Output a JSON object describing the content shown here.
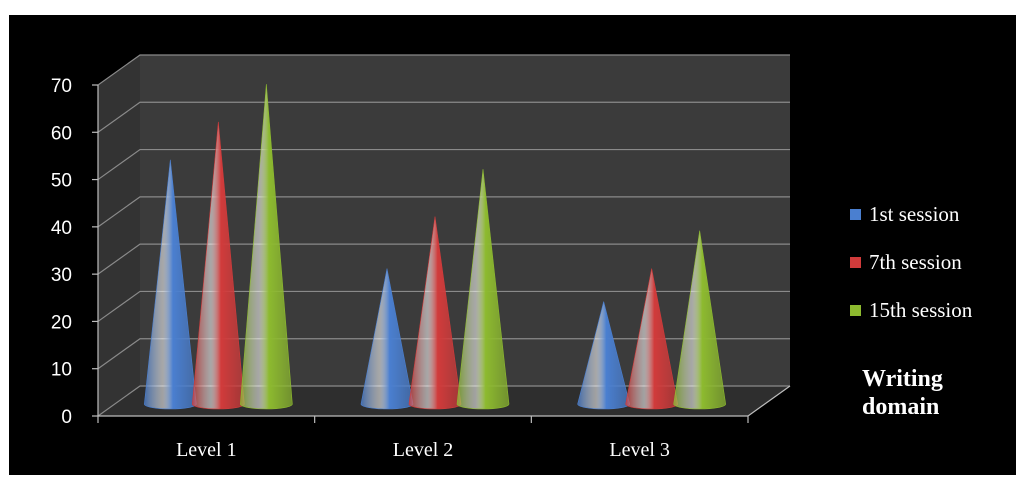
{
  "chart_data": {
    "type": "bar",
    "shape": "cone",
    "categories": [
      "Level 1",
      "Level 2",
      "Level 3"
    ],
    "series": [
      {
        "name": "1st session",
        "values": [
          47,
          24,
          17
        ],
        "color": "#4a7fd0"
      },
      {
        "name": "7th session",
        "values": [
          55,
          35,
          24
        ],
        "color": "#d13b3b"
      },
      {
        "name": "15th session",
        "values": [
          63,
          45,
          32
        ],
        "color": "#8dba2f"
      }
    ],
    "ylim": [
      0,
      70
    ],
    "yticks": [
      "0",
      "10",
      "20",
      "30",
      "40",
      "50",
      "60",
      "70"
    ],
    "grid": true,
    "legend_position": "right",
    "annotation": "Writing\ndomain"
  },
  "colors": {
    "background": "#000000",
    "wall": "#3b3b3b",
    "floor": "#2e2e2e",
    "gridline": "#8a8a8a",
    "text": "#ffffff"
  }
}
